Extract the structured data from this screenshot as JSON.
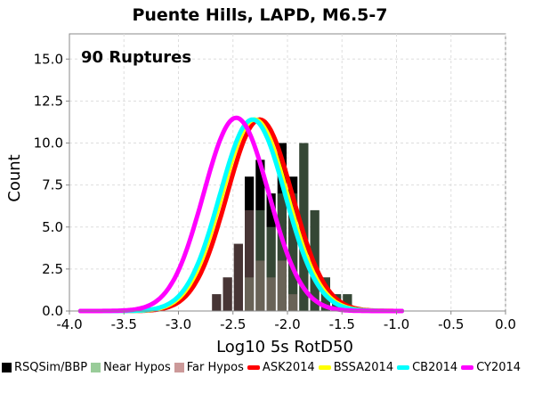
{
  "chart_data": {
    "type": "histogram+line",
    "title": "Puente Hills, LAPD, M6.5-7",
    "annotation": "90 Ruptures",
    "xlabel": "Log10 5s RotD50",
    "ylabel": "Count",
    "xlim": [
      -4.0,
      0.0
    ],
    "ylim": [
      0,
      16.5
    ],
    "x_ticks": [
      "-4.0",
      "-3.5",
      "-3.0",
      "-2.5",
      "-2.0",
      "-1.5",
      "-1.0",
      "-0.5",
      "0.0"
    ],
    "y_ticks": [
      "0.0",
      "2.5",
      "5.0",
      "7.5",
      "10.0",
      "12.5",
      "15.0"
    ],
    "grid": true,
    "legend_position": "bottom",
    "bin_width": 0.1,
    "histogram": {
      "bin_centers": [
        -2.65,
        -2.55,
        -2.45,
        -2.35,
        -2.25,
        -2.15,
        -2.05,
        -1.95,
        -1.85,
        -1.75,
        -1.65,
        -1.55,
        -1.45
      ],
      "far_hypos": [
        1,
        2,
        4,
        6,
        3,
        2,
        3,
        1,
        0,
        0,
        0,
        0,
        0
      ],
      "near_hypos": [
        0,
        0,
        0,
        2,
        6,
        5,
        7,
        7,
        10,
        6,
        2,
        1,
        1
      ]
    },
    "series": [
      {
        "name": "RSQSim/BBP",
        "color": "#000000",
        "kind": "bar"
      },
      {
        "name": "Near Hypos",
        "color": "#99cc99",
        "kind": "bar"
      },
      {
        "name": "Far Hypos",
        "color": "#cc9999",
        "kind": "bar"
      },
      {
        "name": "ASK2014",
        "color": "#ff0000",
        "kind": "line",
        "mean": -2.255,
        "sigma": 0.3,
        "peak": 11.4
      },
      {
        "name": "BSSA2014",
        "color": "#ffff00",
        "kind": "line",
        "mean": -2.3,
        "sigma": 0.3,
        "peak": 11.4
      },
      {
        "name": "CB2014",
        "color": "#00ffff",
        "kind": "line",
        "mean": -2.32,
        "sigma": 0.3,
        "peak": 11.4
      },
      {
        "name": "CY2014",
        "color": "#ff00ff",
        "kind": "line",
        "mean": -2.47,
        "sigma": 0.3,
        "peak": 11.5
      }
    ]
  }
}
